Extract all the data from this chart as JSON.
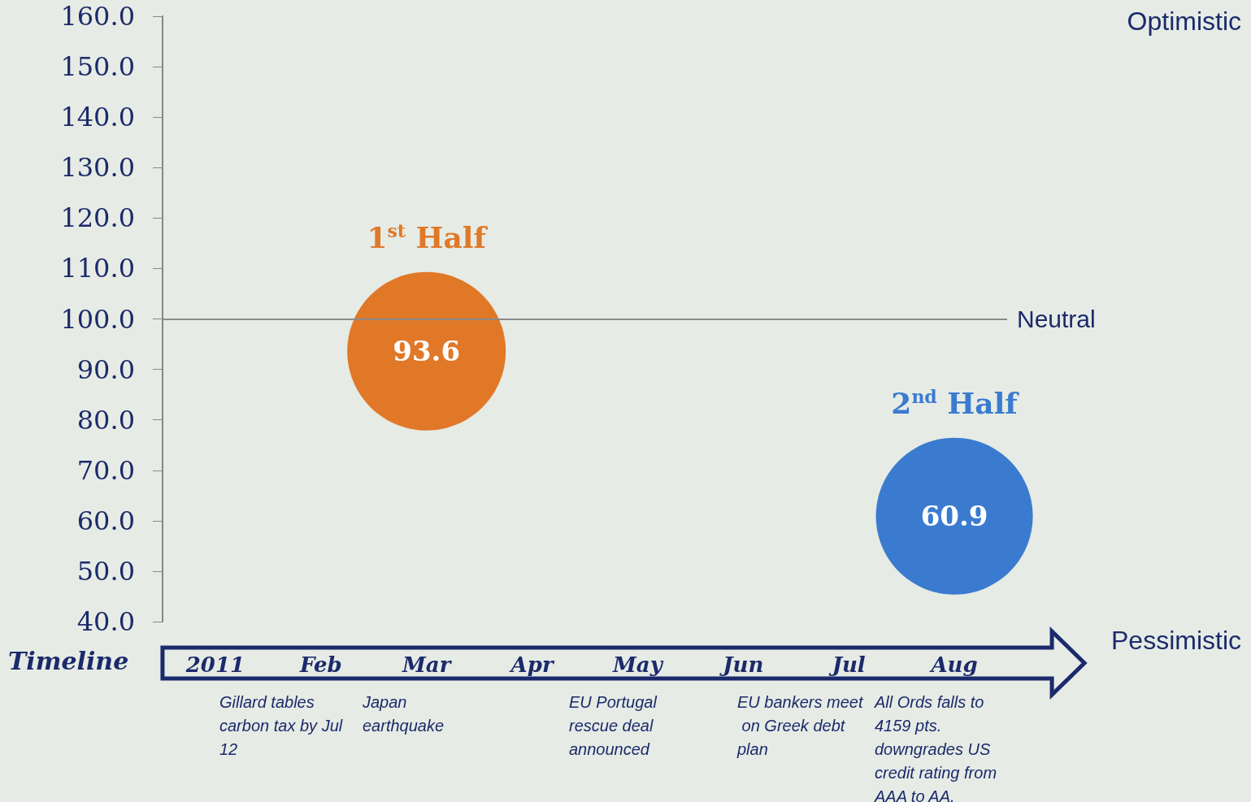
{
  "chart_data": {
    "type": "bubble",
    "xlabel": "Timeline",
    "categories": [
      "2011",
      "Feb",
      "Mar",
      "Apr",
      "May",
      "Jun",
      "Jul",
      "Aug"
    ],
    "series": [
      {
        "name": "1$^{st}$ Half",
        "color": "#e07828",
        "values": [
          null,
          null,
          93.6,
          null,
          null,
          null,
          null,
          null
        ],
        "sizes": [
          null,
          null,
          1,
          null,
          null,
          null,
          null,
          null
        ]
      },
      {
        "name": "2$^{nd}$ Half",
        "color": "#3a7bd0",
        "values": [
          null,
          null,
          null,
          null,
          null,
          null,
          null,
          60.9
        ],
        "sizes": [
          null,
          null,
          null,
          null,
          null,
          null,
          null,
          0.98
        ]
      }
    ],
    "data_labels": true,
    "ylim": [
      40,
      160
    ],
    "yticks": [
      {
        "value": 40,
        "label": "40.0"
      },
      {
        "value": 50,
        "label": "50.0"
      },
      {
        "value": 60,
        "label": "60.0"
      },
      {
        "value": 70,
        "label": "70.0"
      },
      {
        "value": 80,
        "label": "80.0"
      },
      {
        "value": 90,
        "label": "90.0"
      },
      {
        "value": 100,
        "label": "100.0"
      },
      {
        "value": 110,
        "label": "110.0"
      },
      {
        "value": 120,
        "label": "120.0"
      },
      {
        "value": 130,
        "label": "130.0"
      },
      {
        "value": 140,
        "label": "140.0"
      },
      {
        "value": 150,
        "label": "150.0"
      },
      {
        "value": 160,
        "label": "160.0"
      }
    ],
    "ref_lines": [
      {
        "axis": "y",
        "value": 100,
        "label": "Neutral",
        "color": "#8a8a8a"
      }
    ],
    "annotations": [
      "Optimistic",
      "Pessimistic",
      "Gillard tables carbon tax by Jul 12",
      "Japan earthquake",
      "EU Portugal rescue deal announced",
      "EU bankers meet on Greek debt plan",
      "All Ords falls to 4159 pts. downgrades US credit rating from AAA to AA."
    ],
    "grid": false,
    "legend": false
  }
}
